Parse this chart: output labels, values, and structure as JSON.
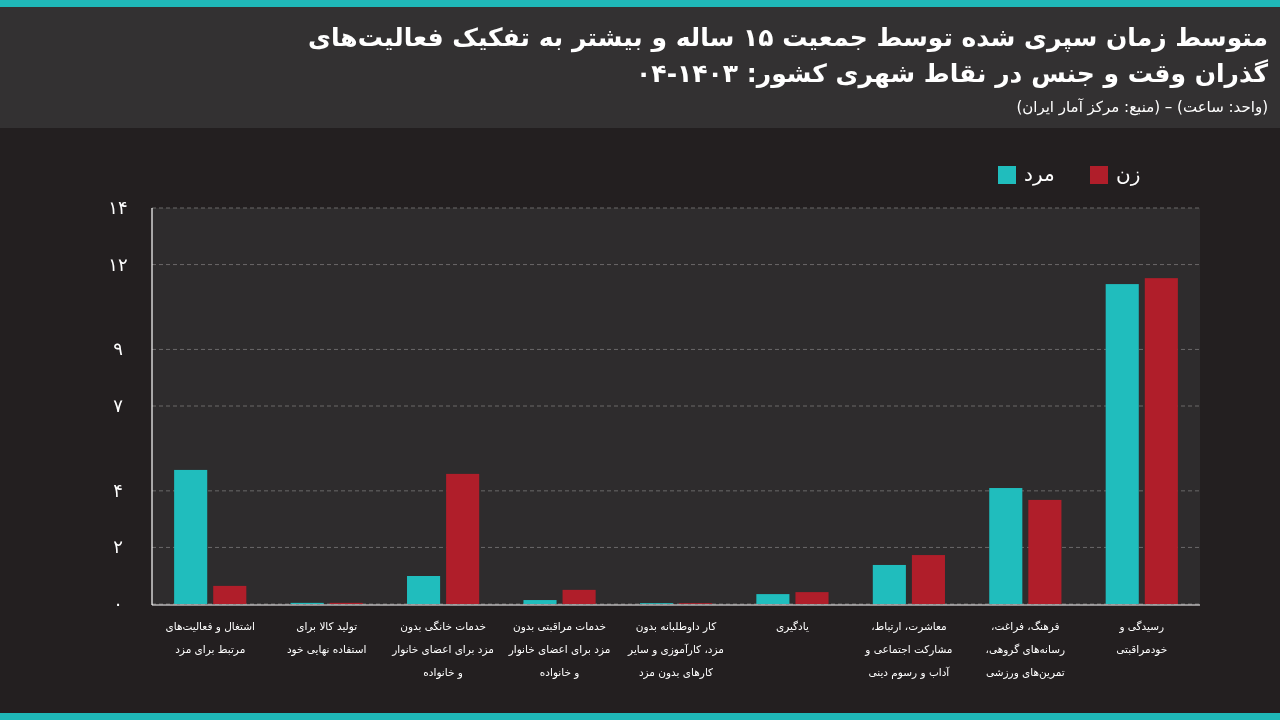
{
  "chart_data": {
    "type": "bar",
    "title": "متوسط زمان سپری شده توسط جمعیت ۱۵ ساله و بیشتر به تفکیک فعالیت‌های\nگذران وقت و جنس در نقاط شهری کشور: ۱۴۰۳-۰۴",
    "subtitle": "(واحد: ساعت) – (منبع: مرکز آمار ایران)",
    "categories": [
      "اشتغال و فعالیت‌های\nمرتبط برای مزد",
      "تولید کالا برای\nاستفاده نهایی خود",
      "خدمات خانگی بدون\nمزد برای اعضای خانوار\nو خانواده",
      "خدمات مراقبتی بدون\nمزد برای اعضای خانوار\nو خانواده",
      "کار داوطلبانه بدون\nمزد، کارآموزی و سایر\nکارهای بدون مزد",
      "یادگیری",
      "معاشرت، ارتباط،\nمشارکت اجتماعی و\nآداب و رسوم دینی",
      "فرهنگ، فراغت،\nرسانه‌های گروهی،\nتمرین‌های ورزشی",
      "رسیدگی و\nخودمراقبتی"
    ],
    "series": [
      {
        "name": "مرد",
        "color": "#20bdbd",
        "values": [
          4.74,
          0.04,
          0.99,
          0.14,
          0.03,
          0.35,
          1.38,
          4.1,
          11.31
        ]
      },
      {
        "name": "زن",
        "color": "#b01e2a",
        "values": [
          0.64,
          0.04,
          4.6,
          0.5,
          0.03,
          0.42,
          1.73,
          3.68,
          11.52
        ]
      }
    ],
    "ylim": [
      0,
      14
    ],
    "yticks": [
      {
        "value": 0,
        "label": "۰"
      },
      {
        "value": 2,
        "label": "۲"
      },
      {
        "value": 4,
        "label": "۴"
      },
      {
        "value": 7,
        "label": "۷"
      },
      {
        "value": 9,
        "label": "۹"
      },
      {
        "value": 12,
        "label": "۱۲"
      },
      {
        "value": 14,
        "label": "۱۴"
      }
    ],
    "grid": "y",
    "legend": "top right"
  }
}
